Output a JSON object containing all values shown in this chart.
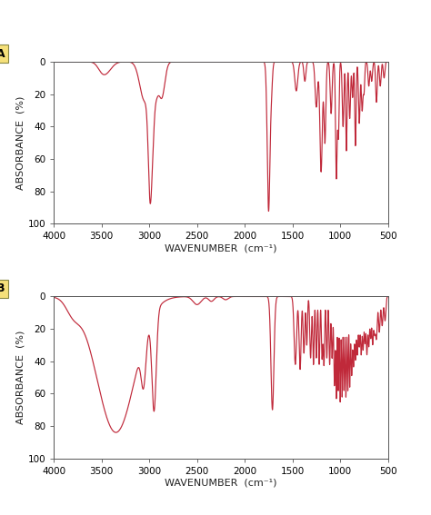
{
  "line_color": "#c0293a",
  "background_color": "#ffffff",
  "label_color": "#222222",
  "xlabel": "WAVENUMBER  (cm⁻¹)",
  "ylabel": "ABSORBANCE  (%)",
  "xlim": [
    4000,
    500
  ],
  "ylim": [
    100,
    0
  ],
  "yticks": [
    0,
    20,
    40,
    60,
    80,
    100
  ],
  "xticks": [
    4000,
    3500,
    3000,
    2500,
    2000,
    1500,
    1000,
    500
  ],
  "label_A": "A",
  "label_B": "B",
  "tick_fontsize": 7.5,
  "axis_label_fontsize": 8
}
